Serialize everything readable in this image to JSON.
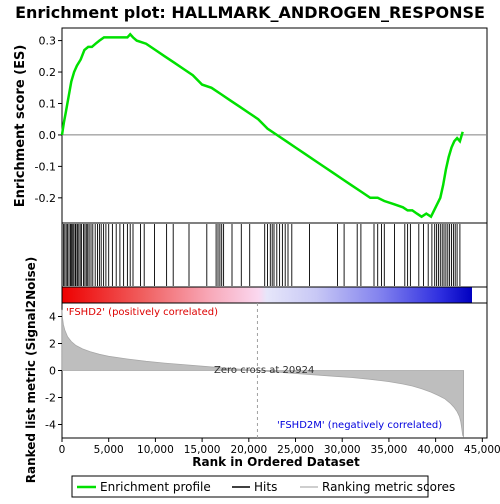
{
  "chart_data": [
    {
      "type": "line",
      "title": "Enrichment plot: HALLMARK_ANDROGEN_RESPONSE",
      "ylabel": "Enrichment score (ES)",
      "xlim": [
        0,
        43000
      ],
      "ylim": [
        -0.28,
        0.34
      ],
      "yticks": [
        -0.2,
        -0.1,
        0.0,
        0.1,
        0.2,
        0.3
      ],
      "ytick_labels": [
        "-0.2",
        "-0.1",
        "0.0",
        "0.1",
        "0.2",
        "0.3"
      ],
      "grid": false,
      "series": [
        {
          "name": "Enrichment profile",
          "color": "#00e000",
          "x": [
            0,
            200,
            400,
            700,
            1000,
            1300,
            1600,
            2000,
            2400,
            2800,
            3200,
            3600,
            4000,
            4500,
            5000,
            5500,
            6000,
            6500,
            7000,
            7300,
            7600,
            8000,
            9000,
            10000,
            11000,
            12000,
            13000,
            14000,
            15000,
            16000,
            17000,
            18000,
            19000,
            20000,
            21000,
            22000,
            23000,
            24000,
            25000,
            26000,
            27000,
            28000,
            29000,
            30000,
            31000,
            32000,
            33000,
            33800,
            34500,
            35500,
            36500,
            37000,
            37500,
            38000,
            38500,
            39000,
            39500,
            40000,
            40500,
            40800,
            41100,
            41400,
            41700,
            42000,
            42300,
            42600,
            42900
          ],
          "y": [
            0.0,
            0.04,
            0.07,
            0.12,
            0.17,
            0.2,
            0.22,
            0.24,
            0.27,
            0.28,
            0.28,
            0.29,
            0.3,
            0.31,
            0.31,
            0.31,
            0.31,
            0.31,
            0.31,
            0.32,
            0.31,
            0.3,
            0.29,
            0.27,
            0.25,
            0.23,
            0.21,
            0.19,
            0.16,
            0.15,
            0.13,
            0.11,
            0.09,
            0.07,
            0.05,
            0.02,
            0.0,
            -0.02,
            -0.04,
            -0.06,
            -0.08,
            -0.1,
            -0.12,
            -0.14,
            -0.16,
            -0.18,
            -0.2,
            -0.2,
            -0.21,
            -0.22,
            -0.23,
            -0.24,
            -0.24,
            -0.25,
            -0.26,
            -0.25,
            -0.26,
            -0.23,
            -0.2,
            -0.16,
            -0.11,
            -0.07,
            -0.04,
            -0.02,
            -0.01,
            -0.02,
            0.01
          ]
        }
      ]
    },
    {
      "type": "scatter",
      "title": "",
      "series": [
        {
          "name": "Hits",
          "color": "#000000",
          "x": [
            150,
            300,
            450,
            600,
            750,
            900,
            1000,
            1100,
            1250,
            1400,
            1500,
            1650,
            1800,
            1950,
            2100,
            2300,
            2450,
            2600,
            2750,
            2900,
            3100,
            3300,
            3550,
            3800,
            4000,
            4200,
            4450,
            4700,
            5000,
            5400,
            5800,
            6200,
            6600,
            7000,
            7300,
            7600,
            8400,
            8800,
            9900,
            11200,
            11900,
            13600,
            15500,
            16500,
            16700,
            16900,
            17100,
            17300,
            18200,
            19200,
            20100,
            21700,
            22000,
            22300,
            22500,
            22700,
            23000,
            23300,
            23600,
            23900,
            24200,
            24600,
            26500,
            29500,
            30200,
            31600,
            32000,
            33400,
            33800,
            34200,
            34500,
            35600,
            36700,
            37000,
            37300,
            38200,
            38700,
            39200,
            39600,
            39900,
            40100,
            40300,
            40500,
            40700,
            40900,
            41100,
            41300,
            41500,
            41700,
            41900,
            42100,
            42300,
            42600
          ]
        }
      ]
    },
    {
      "type": "area",
      "title": "",
      "xlabel": "Rank in Ordered Dataset",
      "ylabel": "Ranked list metric (Signal2Noise)",
      "xlim": [
        0,
        43000
      ],
      "ylim": [
        -5.0,
        5.0
      ],
      "yticks": [
        -4,
        -2,
        0,
        2,
        4
      ],
      "ytick_labels": [
        "-4",
        "-2",
        "0",
        "2",
        "4"
      ],
      "xticks": [
        0,
        5000,
        10000,
        15000,
        20000,
        25000,
        30000,
        35000,
        40000,
        45000
      ],
      "xtick_labels": [
        "0",
        "5,000",
        "10,000",
        "15,000",
        "20,000",
        "25,000",
        "30,000",
        "35,000",
        "40,000",
        "45,000"
      ],
      "grid": false,
      "series": [
        {
          "name": "Ranking metric scores",
          "color": "#bebebe",
          "x": [
            0,
            50,
            150,
            300,
            600,
            1000,
            1500,
            2200,
            3000,
            4000,
            5000,
            7000,
            9000,
            11000,
            13000,
            15000,
            17000,
            19000,
            20924,
            23000,
            25000,
            27000,
            29000,
            31000,
            33000,
            35000,
            36500,
            37500,
            38500,
            39500,
            40300,
            41000,
            41600,
            42000,
            42300,
            42550,
            42700,
            42800,
            42900,
            43000
          ],
          "y": [
            4.5,
            3.9,
            3.4,
            3.0,
            2.5,
            2.15,
            1.85,
            1.6,
            1.4,
            1.2,
            1.05,
            0.85,
            0.68,
            0.55,
            0.44,
            0.32,
            0.21,
            0.1,
            0.0,
            -0.12,
            -0.22,
            -0.32,
            -0.42,
            -0.52,
            -0.65,
            -0.82,
            -1.0,
            -1.15,
            -1.35,
            -1.6,
            -1.85,
            -2.1,
            -2.45,
            -2.75,
            -3.05,
            -3.4,
            -3.8,
            -4.3,
            -4.8,
            -4.9
          ]
        }
      ],
      "annotations": [
        {
          "text": "'FSHD2' (positively correlated)",
          "color": "#dd0000"
        },
        {
          "text": "Zero cross at 20924",
          "x": 20924,
          "color": "#303030"
        },
        {
          "text": "'FSHD2M' (negatively correlated)",
          "color": "#0000dd"
        }
      ]
    }
  ],
  "legend": {
    "placement": "bottom",
    "items": [
      {
        "label": "Enrichment profile",
        "color": "#00e000"
      },
      {
        "label": "Hits",
        "color": "#000000"
      },
      {
        "label": "Ranking metric scores",
        "color": "#bebebe"
      }
    ]
  }
}
